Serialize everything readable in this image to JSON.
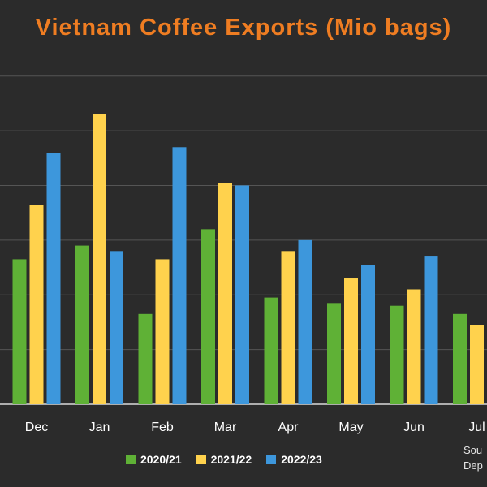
{
  "chart_data": {
    "type": "bar",
    "title": "Vietnam Coffee Exports (Mio bags)",
    "categories": [
      "Dec",
      "Jan",
      "Feb",
      "Mar",
      "Apr",
      "May",
      "Jun",
      "Jul"
    ],
    "series": [
      {
        "name": "2020/21",
        "color": "#5fb136",
        "values": [
          2.65,
          2.9,
          1.65,
          3.2,
          1.95,
          1.85,
          1.8,
          1.65
        ]
      },
      {
        "name": "2021/22",
        "color": "#ffd24d",
        "values": [
          3.65,
          5.3,
          2.65,
          4.05,
          2.8,
          2.3,
          2.1,
          1.45
        ]
      },
      {
        "name": "2022/23",
        "color": "#3d97dc",
        "values": [
          4.6,
          2.8,
          4.7,
          4.0,
          3.0,
          2.55,
          2.7,
          null
        ]
      }
    ],
    "ylim": [
      0,
      6.5
    ],
    "y_gridlines": [
      0,
      1,
      2,
      3,
      4,
      5,
      6
    ],
    "grid": true,
    "legend_position": "bottom",
    "xlabel": "",
    "ylabel": ""
  },
  "source_note": "Sou\nDep",
  "colors": {
    "background": "#2b2b2b",
    "title": "#ef7d22",
    "gridline": "#555555",
    "tick_label": "#ffffff"
  }
}
